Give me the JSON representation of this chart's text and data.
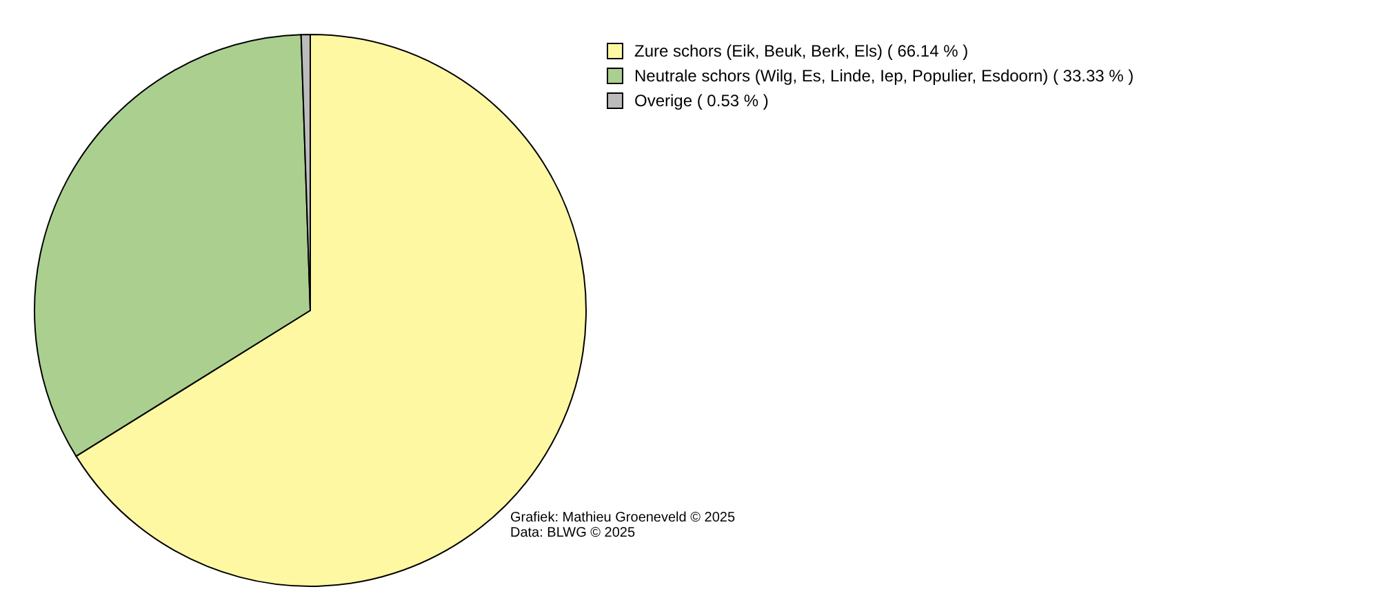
{
  "chart_data": {
    "type": "pie",
    "categories": [
      "Zure schors (Eik, Beuk, Berk, Els) ( 66.14 % )",
      "Neutrale schors (Wilg, Es, Linde, Iep, Populier, Esdoorn) ( 33.33 % )",
      "Overige ( 0.53 % )"
    ],
    "values": [
      66.14,
      33.33,
      0.53
    ],
    "colors": [
      "#fff8a3",
      "#abcf8f",
      "#bbbbbb"
    ],
    "legend": "top right",
    "annotations": [
      "Grafiek: Mathieu Groeneveld © 2025",
      "Data: BLWG © 2025"
    ]
  }
}
